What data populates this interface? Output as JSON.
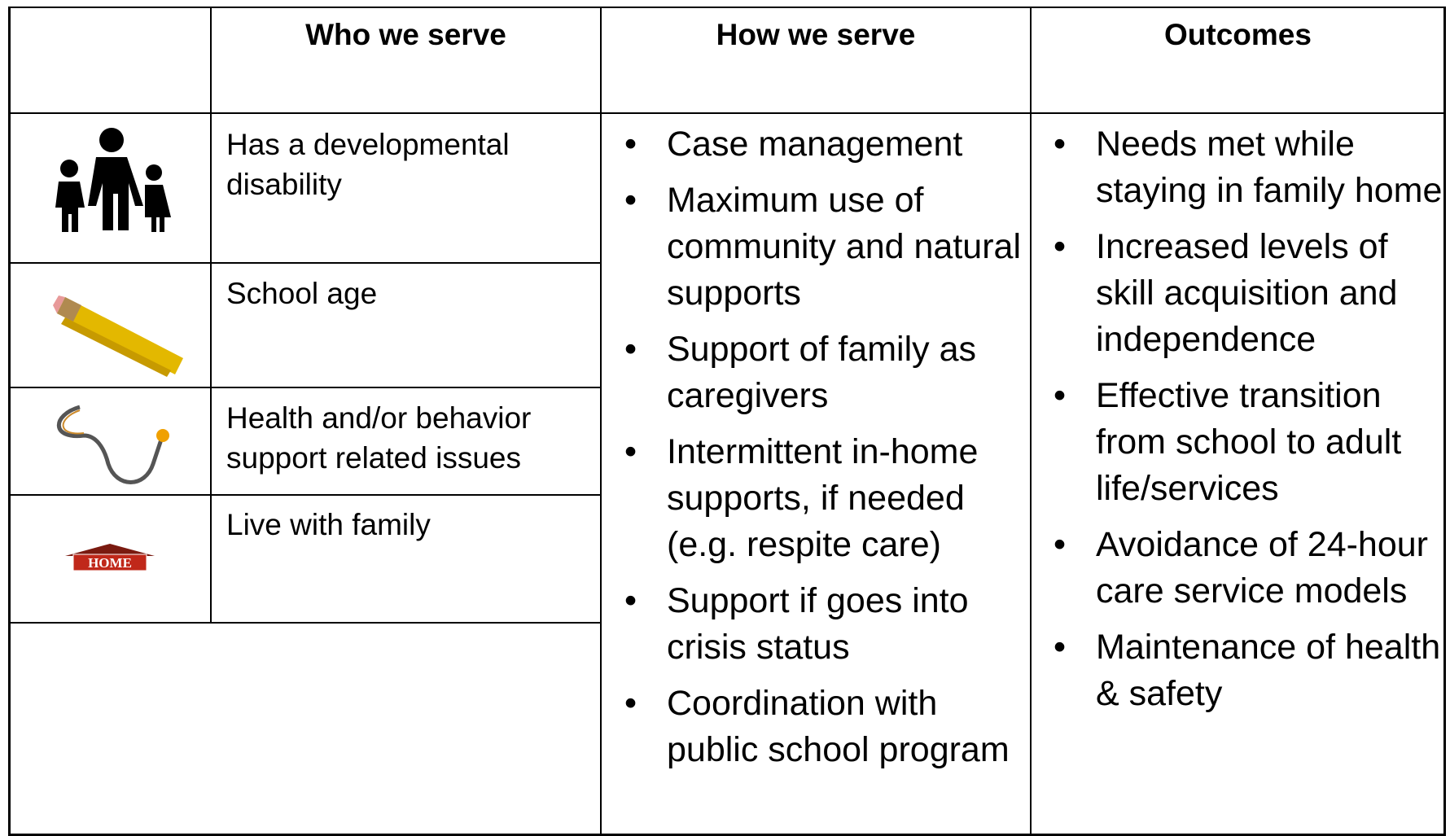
{
  "table": {
    "header": [
      "Who we serve",
      "How we serve",
      "Outcomes"
    ],
    "who": [
      "Has a developmental disability",
      "School age",
      "Health and/or behavior support related issues",
      "Live with family"
    ],
    "how": [
      "Case management",
      "Maximum use of community and natural supports",
      "Support of family as caregivers",
      "Intermittent in-home supports, if needed (e.g. respite care)",
      "Support if goes into crisis status",
      "Coordination with public school program"
    ],
    "outcomes": [
      "Needs met while staying in family home",
      "Increased levels of skill acquisition and independence",
      "Effective transition from school to adult life/services",
      "Avoidance of 24-hour care service models",
      "Maintenance of health & safety"
    ]
  }
}
